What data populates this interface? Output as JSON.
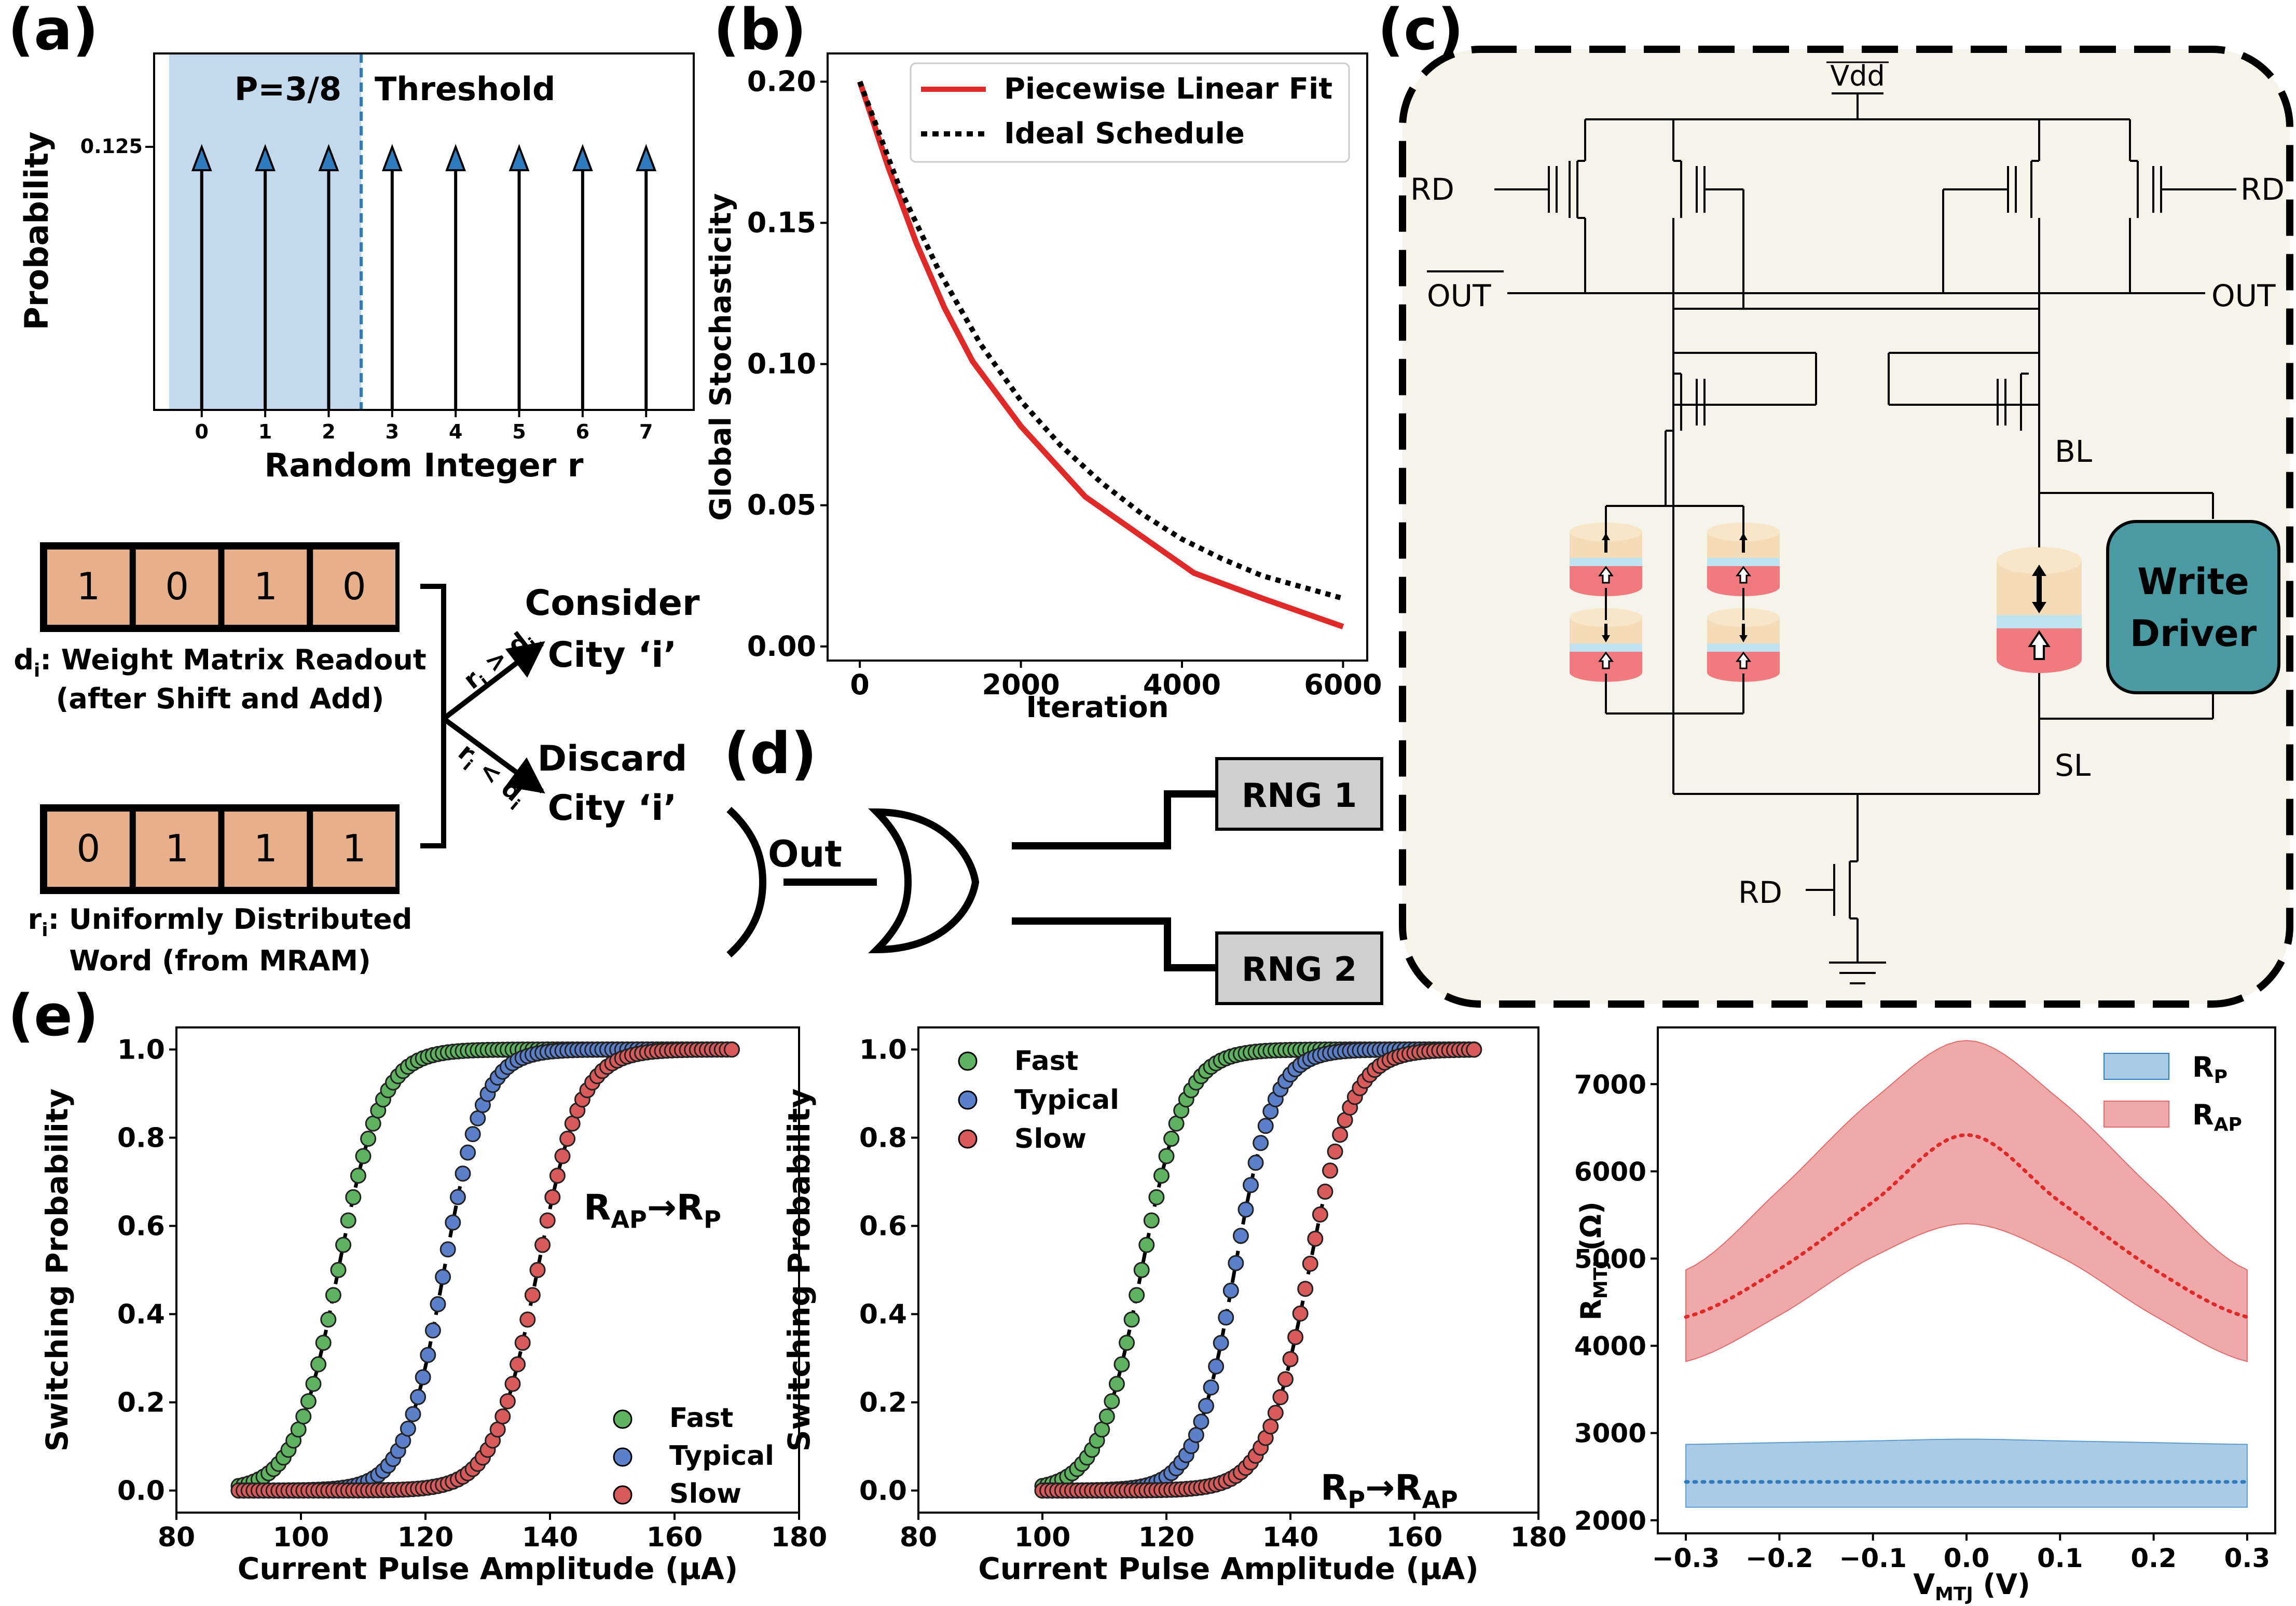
{
  "panel_labels": {
    "a": "(a)",
    "b": "(b)",
    "c": "(c)",
    "d": "(d)",
    "e": "(e)"
  },
  "colors": {
    "shade_blue": "#c5d9ec",
    "arrow_blue": "#2f7bbf",
    "orange": "#e8b08a",
    "red": "#e02a2a",
    "green": "#5fb25f",
    "blue_pt": "#5b7fc9",
    "red_pt": "#d95a5a",
    "rp_band": "#a9cbe6",
    "rap_band": "#f0a9ab",
    "circuit_bg": "#f6f3ea",
    "write_driver": "#4a9aa4",
    "rng_box": "#cfcfcf"
  },
  "chart_data": [
    {
      "id": "a_stem",
      "type": "stem",
      "categories": [
        "0",
        "1",
        "2",
        "3",
        "4",
        "5",
        "6",
        "7"
      ],
      "values": [
        0.125,
        0.125,
        0.125,
        0.125,
        0.125,
        0.125,
        0.125,
        0.125
      ],
      "xlabel": "Random Integer r",
      "ylabel": "Probability",
      "ytick": "0.125",
      "shaded_region_label": "P=3/8",
      "threshold_label": "Threshold"
    },
    {
      "id": "b_line",
      "type": "line",
      "xlabel": "Iteration",
      "ylabel": "Global Stochasticity",
      "xlim": [
        -400,
        6300
      ],
      "ylim": [
        -0.005,
        0.21
      ],
      "xticks": [
        "0",
        "2000",
        "4000",
        "6000"
      ],
      "yticks": [
        "0.00",
        "0.05",
        "0.10",
        "0.15",
        "0.20"
      ],
      "legend_placement": "top-right",
      "series": [
        {
          "name": "Piecewise Linear Fit",
          "x": [
            0,
            350,
            700,
            1050,
            1400,
            2000,
            2800,
            4150,
            5000,
            6000
          ],
          "y": [
            0.2,
            0.17,
            0.143,
            0.12,
            0.101,
            0.078,
            0.053,
            0.026,
            0.017,
            0.007
          ]
        },
        {
          "name": "Ideal Schedule",
          "x": [
            0,
            500,
            1000,
            1500,
            2000,
            2500,
            3000,
            3500,
            4000,
            4500,
            5000,
            5500,
            6000
          ],
          "y": [
            0.2,
            0.162,
            0.132,
            0.107,
            0.087,
            0.071,
            0.058,
            0.047,
            0.038,
            0.031,
            0.025,
            0.021,
            0.017
          ]
        }
      ]
    },
    {
      "id": "e1",
      "type": "scatter",
      "xlabel": "Current Pulse Amplitude (µA)",
      "ylabel": "Switching Probability",
      "xlim": [
        80,
        180
      ],
      "ylim": [
        -0.05,
        1.05
      ],
      "xticks": [
        "80",
        "100",
        "120",
        "140",
        "160",
        "180"
      ],
      "yticks": [
        "0.0",
        "0.2",
        "0.4",
        "0.6",
        "0.8",
        "1.0"
      ],
      "legend_placement": "lower-right",
      "series": [
        {
          "name": "Fast",
          "x0": 90,
          "x1": 170,
          "center": 106,
          "width": 3.5
        },
        {
          "name": "Typical",
          "x0": 90,
          "x1": 170,
          "center": 123,
          "width": 3.2
        },
        {
          "name": "Slow",
          "x0": 90,
          "x1": 170,
          "center": 138,
          "width": 3.5
        }
      ]
    },
    {
      "id": "e2",
      "type": "scatter",
      "xlabel": "Current Pulse Amplitude (µA)",
      "ylabel": "Switching Probability",
      "xlim": [
        80,
        180
      ],
      "ylim": [
        -0.05,
        1.05
      ],
      "xticks": [
        "80",
        "100",
        "120",
        "140",
        "160",
        "180"
      ],
      "yticks": [
        "0.0",
        "0.2",
        "0.4",
        "0.6",
        "0.8",
        "1.0"
      ],
      "legend_placement": "upper-left",
      "series": [
        {
          "name": "Fast",
          "x0": 100,
          "x1": 170,
          "center": 116,
          "width": 3.5
        },
        {
          "name": "Typical",
          "x0": 100,
          "x1": 170,
          "center": 131,
          "width": 3.2
        },
        {
          "name": "Slow",
          "x0": 100,
          "x1": 170,
          "center": 143,
          "width": 3.5
        }
      ]
    },
    {
      "id": "e3",
      "type": "area",
      "xlabel": "V_MTJ (V)",
      "ylabel": "R_MTJ (Ω)",
      "xlim": [
        -0.33,
        0.33
      ],
      "ylim": [
        1850,
        7650
      ],
      "xticks": [
        "−0.3",
        "−0.2",
        "−0.1",
        "0.0",
        "0.1",
        "0.2",
        "0.3"
      ],
      "yticks": [
        "2000",
        "3000",
        "4000",
        "5000",
        "6000",
        "7000"
      ],
      "legend_placement": "upper-right",
      "series": [
        {
          "name": "R_P",
          "mean": [
            2440,
            2440,
            2440,
            2440,
            2440,
            2440,
            2440
          ],
          "upper": [
            2870,
            2890,
            2910,
            2930,
            2910,
            2890,
            2870
          ],
          "lower": [
            2150,
            2150,
            2150,
            2150,
            2150,
            2150,
            2150
          ]
        },
        {
          "name": "R_AP",
          "mean": [
            4330,
            4880,
            5650,
            6420,
            5650,
            4880,
            4330
          ],
          "upper": [
            4870,
            5790,
            6820,
            7500,
            6820,
            5790,
            4870
          ],
          "lower": [
            3820,
            4350,
            5020,
            5400,
            5020,
            4350,
            3820
          ]
        }
      ],
      "x": [
        -0.3,
        -0.2,
        -0.1,
        0.0,
        0.1,
        0.2,
        0.3
      ]
    }
  ],
  "a": {
    "bits_d": [
      "1",
      "0",
      "1",
      "0"
    ],
    "bits_r": [
      "0",
      "1",
      "1",
      "1"
    ],
    "d_label1": "d",
    "d_sub": "i",
    "d_label2": ": Weight Matrix Readout",
    "d_label3": "(after Shift and Add)",
    "r_label1": "r",
    "r_sub": "i",
    "r_label2": ": Uniformly Distributed",
    "r_label3": "Word (from MRAM)",
    "consider1": "Consider",
    "consider2": "City ‘i’",
    "discard1": "Discard",
    "discard2": "City ‘i’",
    "cond_gt": "r > d",
    "cond_lt": "r < d",
    "cond_sub": "i"
  },
  "c": {
    "vdd": "Vdd",
    "rd": "RD",
    "out_bar": "OUT",
    "out": "OUT",
    "bl": "BL",
    "sl": "SL",
    "write_driver1": "Write",
    "write_driver2": "Driver"
  },
  "d": {
    "out": "Out",
    "rng1": "RNG 1",
    "rng2": "RNG 2"
  },
  "e": {
    "annot1_main": "R",
    "annot1_sub1": "AP",
    "annot1_arrow": "→",
    "annot1_main2": "R",
    "annot1_sub2": "P",
    "annot2_main": "R",
    "annot2_sub1": "P",
    "annot2_arrow": "→",
    "annot2_main2": "R",
    "annot2_sub2": "AP",
    "e3_ylabel_main": "R",
    "e3_ylabel_sub": "MTJ",
    "e3_ylabel_unit": " (Ω)",
    "e3_xlabel_main": "V",
    "e3_xlabel_sub": "MTJ",
    "e3_xlabel_unit": " (V)",
    "rp_main": "R",
    "rp_sub": "P",
    "rap_main": "R",
    "rap_sub": "AP"
  }
}
